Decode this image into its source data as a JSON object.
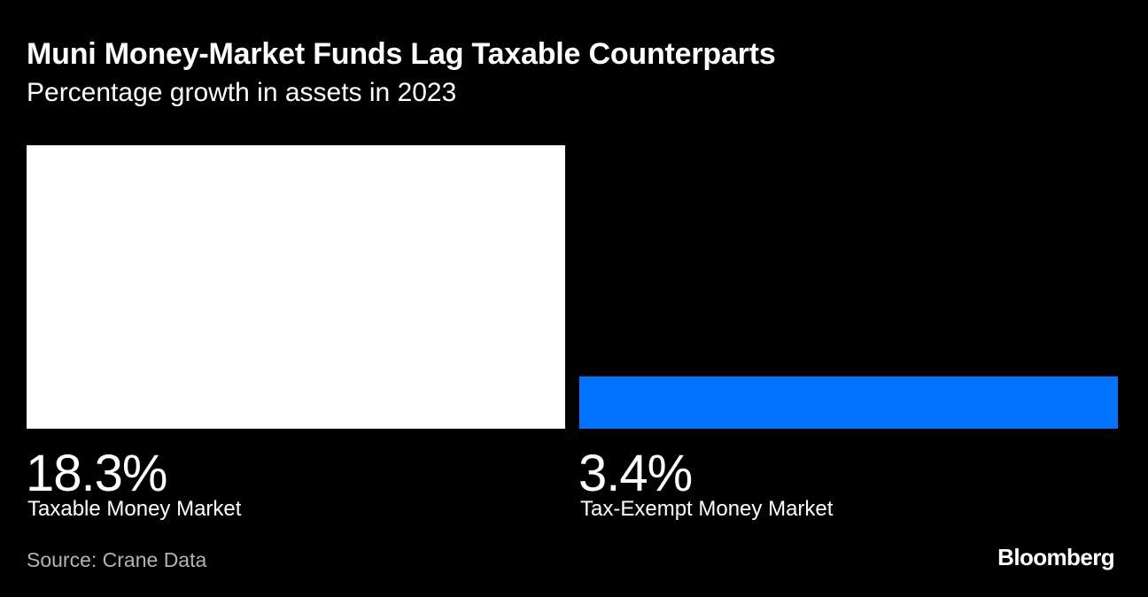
{
  "header": {
    "title": "Muni Money-Market Funds Lag Taxable Counterparts",
    "subtitle": "Percentage growth in assets in 2023"
  },
  "chart_data": {
    "type": "bar",
    "categories": [
      "Taxable Money Market",
      "Tax-Exempt Money Market"
    ],
    "values": [
      18.3,
      3.4
    ],
    "value_labels": [
      "18.3%",
      "3.4%"
    ],
    "colors": [
      "#ffffff",
      "#0073ff"
    ],
    "title": "Muni Money-Market Funds Lag Taxable Counterparts",
    "subtitle": "Percentage growth in assets in 2023",
    "ylim": [
      0,
      18.3
    ],
    "grid": false
  },
  "footer": {
    "source": "Source: Crane Data",
    "logo": "Bloomberg"
  }
}
